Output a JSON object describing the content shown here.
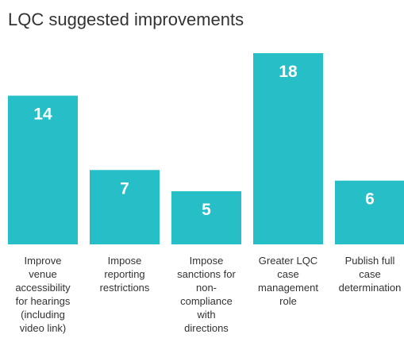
{
  "chart_data": {
    "type": "bar",
    "title": "LQC suggested improvements",
    "categories": [
      "Improve venue accessibility for hearings (including video link)",
      "Impose reporting restrictions",
      "Impose sanctions for non-compliance with directions",
      "Greater LQC case management role",
      "Publish full case determination"
    ],
    "values": [
      14,
      7,
      5,
      18,
      6
    ],
    "color": "#26bfc8"
  }
}
